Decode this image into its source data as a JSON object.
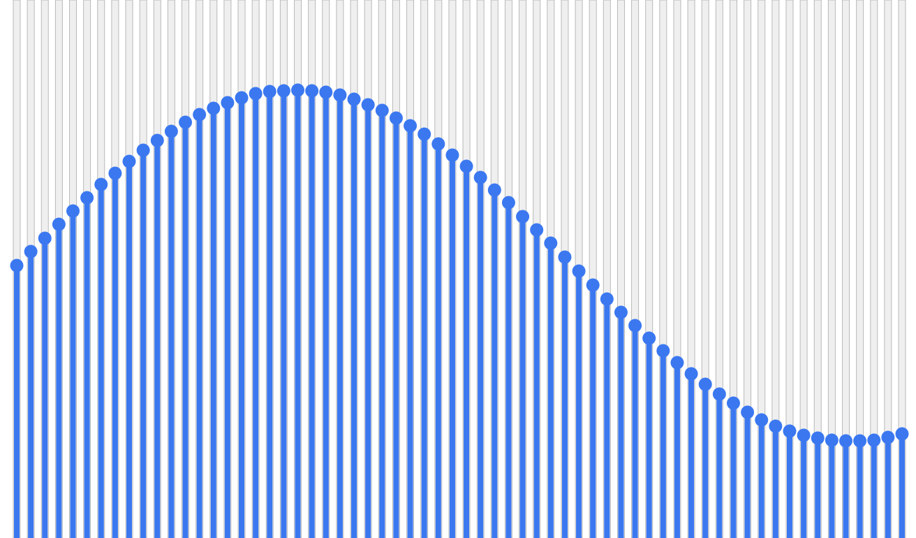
{
  "chart_data": {
    "type": "lollipop",
    "title": "",
    "xlabel": "",
    "ylabel": "",
    "grid": false,
    "legend": "none",
    "colors": {
      "stem": "#3b78f0",
      "dot": "#3b78f0",
      "track_fill": "#efefef",
      "track_border": "#b9b9b9",
      "background": "#ffffff"
    },
    "ylim": [
      0,
      770
    ],
    "values": [
      390,
      410,
      429,
      449,
      468,
      487,
      506,
      522,
      539,
      555,
      569,
      582,
      595,
      606,
      615,
      623,
      630,
      636,
      639,
      640,
      641,
      640,
      638,
      634,
      628,
      620,
      612,
      601,
      590,
      578,
      564,
      548,
      532,
      516,
      498,
      480,
      460,
      441,
      422,
      402,
      382,
      362,
      342,
      323,
      304,
      286,
      268,
      251,
      235,
      220,
      206,
      193,
      180,
      169,
      160,
      153,
      147,
      143,
      140,
      139,
      139,
      140,
      144,
      149
    ]
  }
}
